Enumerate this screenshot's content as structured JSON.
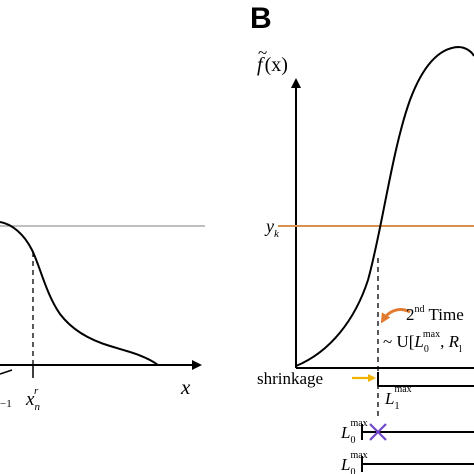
{
  "figure": {
    "panel_b_label": "B",
    "colors": {
      "curve": "#000000",
      "threshold_line_a": "#9a9a9a",
      "threshold_line_b": "#d9904a",
      "arrow_orange": "#e07b30",
      "arrow_yellow": "#f0b400",
      "cross": "#6f46c8"
    },
    "left_panel": {
      "x_axis_label": "x",
      "xn_r_label_main": "x",
      "xn_r_label_sub": "n",
      "xn_r_label_sup": "r",
      "partial_label": "−1"
    },
    "right_panel": {
      "y_axis_label_f": "f",
      "y_axis_label_x": "(x)",
      "y_axis_tilde": "~",
      "yk_main": "y",
      "yk_sub": "k",
      "second_time_num": "2",
      "second_time_sup": "nd",
      "second_time_text": "Time",
      "distribution_prefix": "~ U[",
      "distribution_L": "L",
      "distribution_L_sub": "0",
      "distribution_L_sup": "max",
      "distribution_comma": ", ",
      "distribution_R": "R",
      "distribution_R_sub": "l",
      "shrinkage_label": "shrinkage",
      "L1_main": "L",
      "L1_sub": "1",
      "L1_sup": "max",
      "L0a_main": "L",
      "L0a_sub": "0",
      "L0a_sup": "max",
      "L0b_main": "L",
      "L0b_sub": "0",
      "L0b_sup": "max"
    }
  }
}
